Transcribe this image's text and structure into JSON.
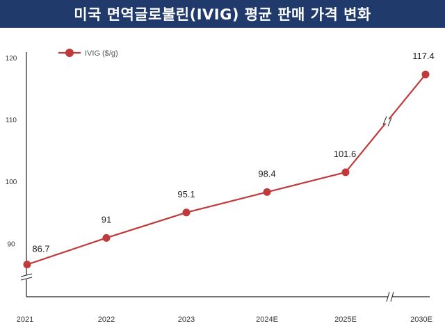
{
  "title": "미국 면역글로불린(IVIG) 평균 판매 가격 변화",
  "colors": {
    "title_bg": "#1f3a6b",
    "series": "#c0393b",
    "axis": "#222222"
  },
  "chart_data": {
    "type": "line",
    "title": "미국 면역글로불린(IVIG) 평균 판매 가격 변화",
    "categories": [
      "2021",
      "2022",
      "2023",
      "2024E",
      "2025E",
      "2030E"
    ],
    "series": [
      {
        "name": "IVIG ($/g)",
        "values": [
          86.7,
          91,
          95.1,
          98.4,
          101.6,
          117.4
        ]
      }
    ],
    "data_labels": [
      "86.7",
      "91",
      "95.1",
      "98.4",
      "101.6",
      "117.4"
    ],
    "y_ticks": [
      90,
      100,
      110,
      120
    ],
    "ylim": [
      81.5,
      121
    ],
    "axis_breaks": [
      "y-axis below 90",
      "x-axis between 2025E and 2030E"
    ],
    "grid": false,
    "legend_position": "top-left",
    "xlabel": "",
    "ylabel": ""
  }
}
